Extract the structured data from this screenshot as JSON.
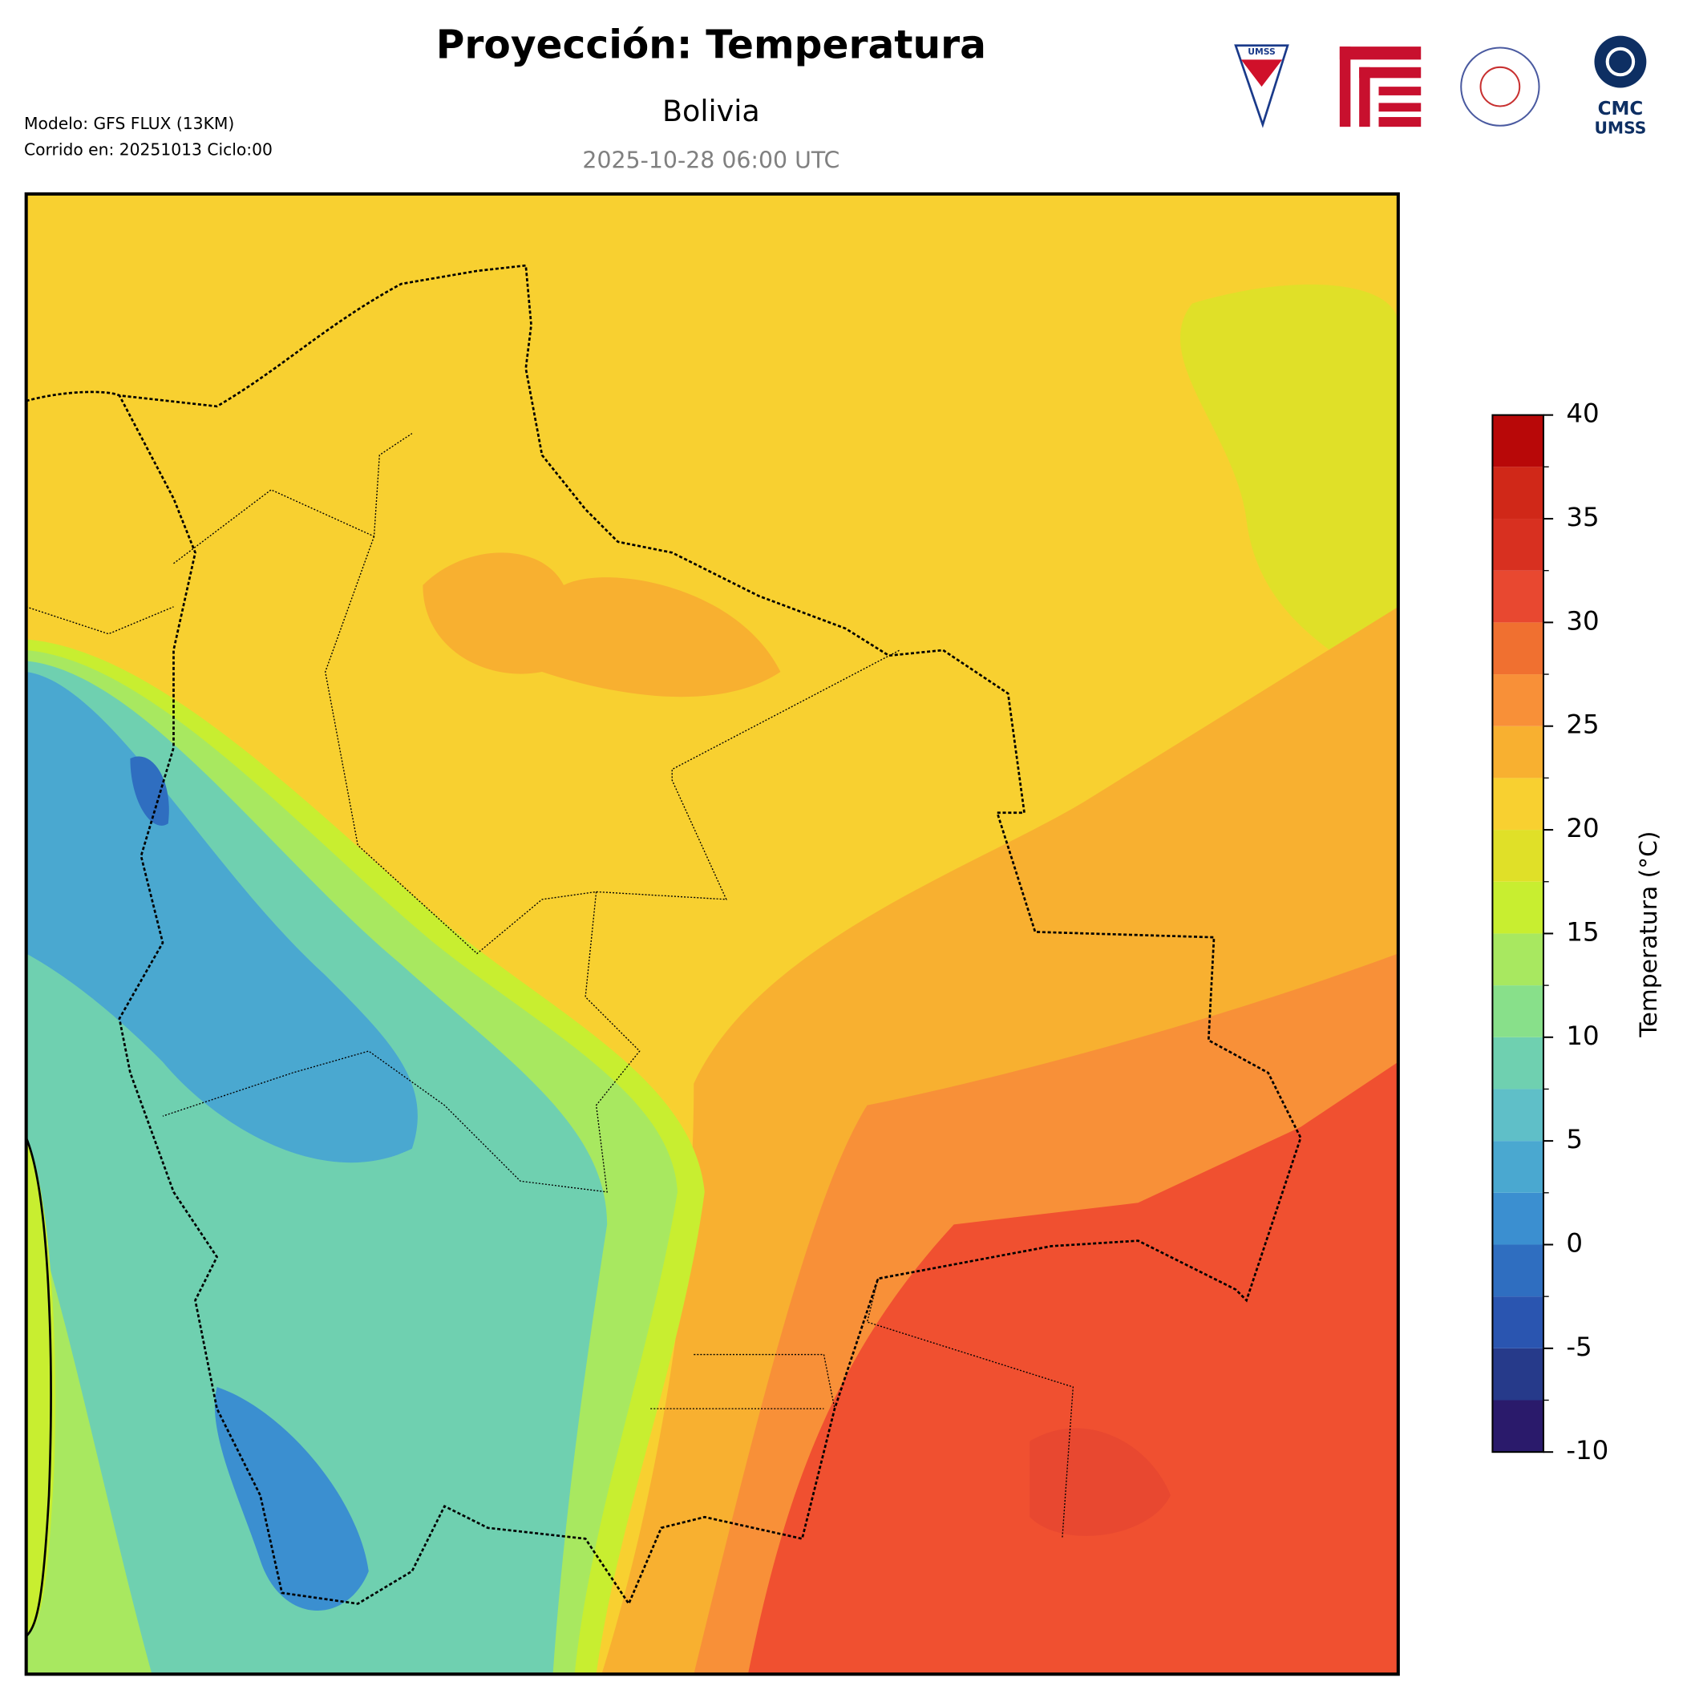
{
  "header": {
    "title": "Proyección: Temperatura",
    "subtitle": "Bolivia",
    "date": "2025-10-28 06:00 UTC",
    "model": "Modelo: GFS FLUX (13KM)",
    "run": "Corrido en: 20251013 Ciclo:00"
  },
  "logos": {
    "shield": "UMSS",
    "cmc": "CMC",
    "cmc_sub": "UMSS"
  },
  "colorbar": {
    "label": "Temperatura (°C)",
    "levels": [
      -10,
      -7.5,
      -5,
      -2.5,
      0,
      2.5,
      5,
      7.5,
      10,
      12.5,
      15,
      17.5,
      20,
      22.5,
      25,
      27.5,
      30,
      32.5,
      35,
      37.5,
      40
    ],
    "colors": [
      "#2a1a6b",
      "#263a8a",
      "#2a55b0",
      "#2f6ec0",
      "#3b8fd0",
      "#4aa8d0",
      "#5fbfc8",
      "#6fd0b0",
      "#88e08a",
      "#a8e860",
      "#c8ee30",
      "#e0e028",
      "#f8d030",
      "#f8b030",
      "#f89038",
      "#f07030",
      "#e84830",
      "#d83020",
      "#d02818",
      "#b80808"
    ],
    "ticks": [
      -10,
      -5,
      0,
      5,
      10,
      15,
      20,
      25,
      30,
      35,
      40
    ]
  }
}
